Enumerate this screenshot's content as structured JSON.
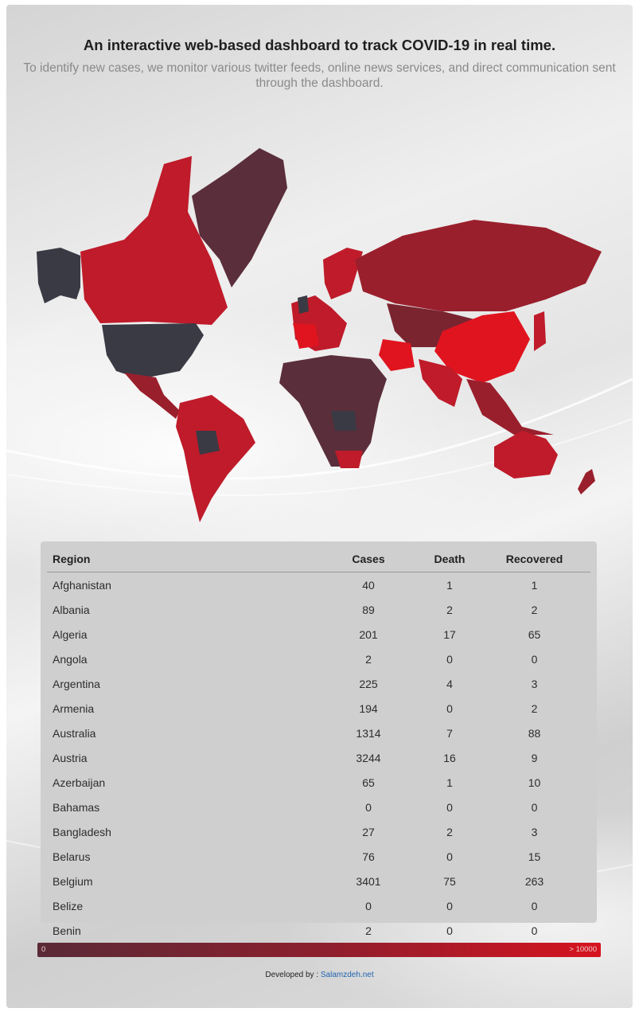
{
  "header": {
    "title": "An interactive web-based dashboard to track COVID-19 in real time.",
    "subtitle": "To identify new cases, we monitor various twitter feeds, online news services, and direct communication sent through the dashboard."
  },
  "map": {
    "colors": {
      "none": "#3a3a44",
      "low": "#5a2e3a",
      "mid_low": "#7a2430",
      "mid": "#9a1f2c",
      "high": "#bf1b2a",
      "max": "#e0141f"
    }
  },
  "table": {
    "headers": {
      "region": "Region",
      "cases": "Cases",
      "death": "Death",
      "recovered": "Recovered"
    },
    "rows": [
      {
        "region": "Afghanistan",
        "cases": "40",
        "death": "1",
        "recovered": "1"
      },
      {
        "region": "Albania",
        "cases": "89",
        "death": "2",
        "recovered": "2"
      },
      {
        "region": "Algeria",
        "cases": "201",
        "death": "17",
        "recovered": "65"
      },
      {
        "region": "Angola",
        "cases": "2",
        "death": "0",
        "recovered": "0"
      },
      {
        "region": "Argentina",
        "cases": "225",
        "death": "4",
        "recovered": "3"
      },
      {
        "region": "Armenia",
        "cases": "194",
        "death": "0",
        "recovered": "2"
      },
      {
        "region": "Australia",
        "cases": "1314",
        "death": "7",
        "recovered": "88"
      },
      {
        "region": "Austria",
        "cases": "3244",
        "death": "16",
        "recovered": "9"
      },
      {
        "region": "Azerbaijan",
        "cases": "65",
        "death": "1",
        "recovered": "10"
      },
      {
        "region": "Bahamas",
        "cases": "0",
        "death": "0",
        "recovered": "0"
      },
      {
        "region": "Bangladesh",
        "cases": "27",
        "death": "2",
        "recovered": "3"
      },
      {
        "region": "Belarus",
        "cases": "76",
        "death": "0",
        "recovered": "15"
      },
      {
        "region": "Belgium",
        "cases": "3401",
        "death": "75",
        "recovered": "263"
      },
      {
        "region": "Belize",
        "cases": "0",
        "death": "0",
        "recovered": "0"
      },
      {
        "region": "Benin",
        "cases": "2",
        "death": "0",
        "recovered": "0"
      }
    ]
  },
  "legend": {
    "min_label": "0",
    "max_label": "> 10000"
  },
  "footer": {
    "prefix": "Developed by : ",
    "link_text": "Salamzdeh.net",
    "link_color": "#1f64b0"
  }
}
